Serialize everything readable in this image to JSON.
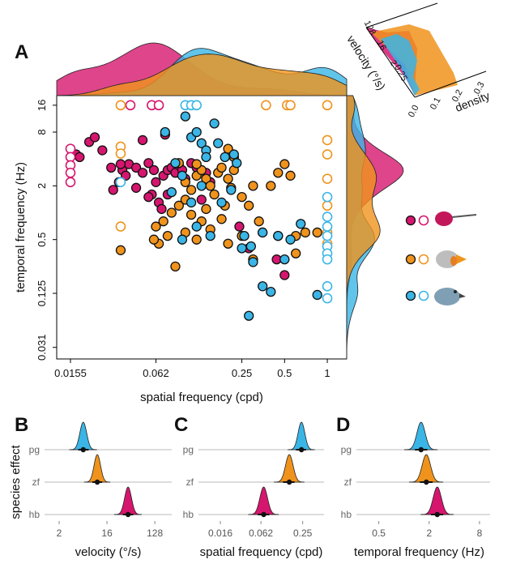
{
  "chart_data": [
    {
      "type": "scatter",
      "panel": "A",
      "xlabel": "spatial frequency (cpd)",
      "ylabel": "temporal frequency (Hz)",
      "log_base": 2,
      "xlim": [
        0.0124,
        1.37
      ],
      "ylim": [
        0.023,
        20.5
      ],
      "xticks": [
        0.0155,
        0.062,
        0.25,
        0.5,
        1
      ],
      "yticks": [
        0.031,
        0.125,
        0.5,
        2,
        8,
        16
      ],
      "series": [
        {
          "color": "#d6166e",
          "marker": "filled",
          "x": [
            0.017,
            0.018,
            0.021,
            0.023,
            0.026,
            0.031,
            0.034,
            0.036,
            0.038,
            0.04,
            0.045,
            0.05,
            0.055,
            0.06,
            0.058,
            0.062,
            0.065,
            0.07,
            0.072,
            0.075,
            0.08,
            0.085,
            0.09,
            0.095,
            0.1,
            0.11,
            0.12,
            0.13,
            0.14,
            0.05,
            0.045,
            0.055,
            0.075,
            0.24,
            0.28,
            0.44,
            0.5,
            0.15,
            0.068,
            0.035,
            0.03
          ],
          "values": [
            4.5,
            4.2,
            6.2,
            7,
            5,
            1.8,
            2.2,
            3,
            2.6,
            3.5,
            3.2,
            2.8,
            3.6,
            3,
            1.6,
            2.2,
            1.3,
            2.6,
            7.5,
            3,
            3.2,
            2.8,
            3.4,
            3,
            2.4,
            3.6,
            3.2,
            1.4,
            2.8,
            6.5,
            1.9,
            1.5,
            1.6,
            0.7,
            0.4,
            0.3,
            0.2,
            2.2,
            1.1,
            3.5,
            3.2
          ]
        },
        {
          "color": "#d6166e",
          "marker": "open",
          "x": [
            0.0155,
            0.0155,
            0.0155,
            0.0155,
            0.0155,
            0.041,
            0.058,
            0.065
          ],
          "values": [
            5.2,
            4.2,
            3.4,
            2.8,
            2.2,
            16,
            16,
            16
          ]
        },
        {
          "color": "#f0931c",
          "marker": "filled",
          "x": [
            0.09,
            0.1,
            0.11,
            0.12,
            0.13,
            0.14,
            0.15,
            0.16,
            0.17,
            0.18,
            0.19,
            0.2,
            0.21,
            0.22,
            0.25,
            0.28,
            0.3,
            0.33,
            0.4,
            0.45,
            0.5,
            0.55,
            0.6,
            0.7,
            0.85,
            0.6,
            0.45,
            0.35,
            0.3,
            0.25,
            0.2,
            0.15,
            0.13,
            0.1,
            0.08,
            0.075,
            0.065,
            0.062,
            0.06,
            0.07,
            0.085,
            0.12,
            0.14,
            0.11,
            0.18,
            0.1,
            0.12,
            0.2,
            0.22,
            0.035,
            0.09
          ],
          "values": [
            3.6,
            2.2,
            1.8,
            2.6,
            3,
            2.4,
            2,
            1.6,
            2.8,
            3.2,
            1.2,
            2.4,
            1.9,
            3,
            1.5,
            1.2,
            2,
            0.8,
            2,
            2.8,
            3.5,
            2.6,
            0.35,
            0.6,
            0.6,
            0.55,
            0.55,
            0.6,
            0.3,
            0.55,
            0.45,
            0.65,
            0.8,
            0.6,
            1,
            0.55,
            0.45,
            0.7,
            0.5,
            0.8,
            0.25,
            0.5,
            1.1,
            0.95,
            0.85,
            1.4,
            3.5,
            5.2,
            4.2,
            0.38,
            1.2
          ]
        },
        {
          "color": "#f0931c",
          "marker": "open",
          "x": [
            1,
            1,
            1,
            1,
            1,
            1,
            1,
            0.035,
            0.37,
            0.52,
            0.55,
            0.035,
            0.035,
            0.035
          ],
          "values": [
            16,
            6.5,
            4.5,
            2.4,
            1.2,
            0.6,
            0.45,
            16,
            16,
            16,
            16,
            5.5,
            4.6,
            0.7
          ]
        },
        {
          "color": "#3ab5e6",
          "marker": "filled",
          "x": [
            0.072,
            0.08,
            0.085,
            0.095,
            0.1,
            0.11,
            0.12,
            0.13,
            0.14,
            0.14,
            0.16,
            0.17,
            0.18,
            0.19,
            0.21,
            0.22,
            0.23,
            0.25,
            0.26,
            0.29,
            0.3,
            0.35,
            0.4,
            0.45,
            0.55,
            0.65,
            0.85,
            0.12,
            0.11,
            0.095,
            0.35,
            0.28,
            0.15,
            0.13,
            0.5
          ],
          "values": [
            8,
            1.7,
            3.6,
            0.5,
            12,
            7,
            8,
            6,
            5,
            4.2,
            10,
            6,
            1.3,
            4.2,
            1.8,
            4.5,
            3.6,
            0.4,
            0.55,
            0.42,
            0.28,
            0.6,
            0.13,
            0.55,
            0.5,
            0.75,
            0.12,
            0.7,
            1.3,
            2.6,
            0.15,
            0.07,
            0.55,
            2,
            0.3
          ]
        },
        {
          "color": "#3ab5e6",
          "marker": "open",
          "x": [
            0.1,
            0.11,
            0.12,
            1,
            1,
            1,
            1,
            1,
            1,
            1,
            1,
            1,
            0.035
          ],
          "values": [
            16,
            16,
            16,
            1.5,
            0.9,
            0.7,
            0.55,
            0.42,
            0.35,
            0.3,
            0.15,
            0.11,
            2.2
          ]
        }
      ]
    },
    {
      "type": "inset-3d",
      "xlabel": "velocity (°/s)",
      "ylabel": "density",
      "xticks": [
        128,
        16,
        2,
        0.25
      ],
      "yticks": [
        {
          "value": 0,
          "label": "0.0"
        },
        0.1,
        0.2,
        0.3
      ]
    },
    {
      "type": "ridge",
      "panel": "B",
      "ylabel": "species effect",
      "xlabel": "velocity (°/s)",
      "log_base": 2,
      "xlim": [
        1.06,
        267
      ],
      "xticks": [
        2,
        16,
        128
      ],
      "categories": [
        "pg",
        "zf",
        "hb"
      ],
      "colors": [
        "#3ab5e6",
        "#f0931c",
        "#d6166e"
      ],
      "values": [
        5.7,
        10.5,
        40
      ],
      "intervals": [
        [
          4.6,
          7.2
        ],
        [
          8.5,
          13
        ],
        [
          32,
          50
        ]
      ]
    },
    {
      "type": "ridge",
      "panel": "C",
      "xlabel": "spatial frequency (cpd)",
      "log_base": 2,
      "xlim": [
        0.0077,
        0.51
      ],
      "xticks": [
        0.016,
        0.062,
        0.25
      ],
      "categories": [
        "pg",
        "zf",
        "hb"
      ],
      "colors": [
        "#3ab5e6",
        "#f0931c",
        "#d6166e"
      ],
      "values": [
        0.24,
        0.16,
        0.068
      ],
      "intervals": [
        [
          0.2,
          0.28
        ],
        [
          0.13,
          0.19
        ],
        [
          0.056,
          0.082
        ]
      ]
    },
    {
      "type": "ridge",
      "panel": "D",
      "xlabel": "temporal frequency (Hz)",
      "log_base": 2,
      "xlim": [
        0.27,
        10.7
      ],
      "xticks": [
        0.5,
        2,
        8
      ],
      "categories": [
        "pg",
        "zf",
        "hb"
      ],
      "colors": [
        "#3ab5e6",
        "#f0931c",
        "#d6166e"
      ],
      "values": [
        1.6,
        1.85,
        2.5
      ],
      "intervals": [
        [
          1.35,
          1.9
        ],
        [
          1.55,
          2.2
        ],
        [
          2.1,
          2.95
        ]
      ]
    }
  ]
}
